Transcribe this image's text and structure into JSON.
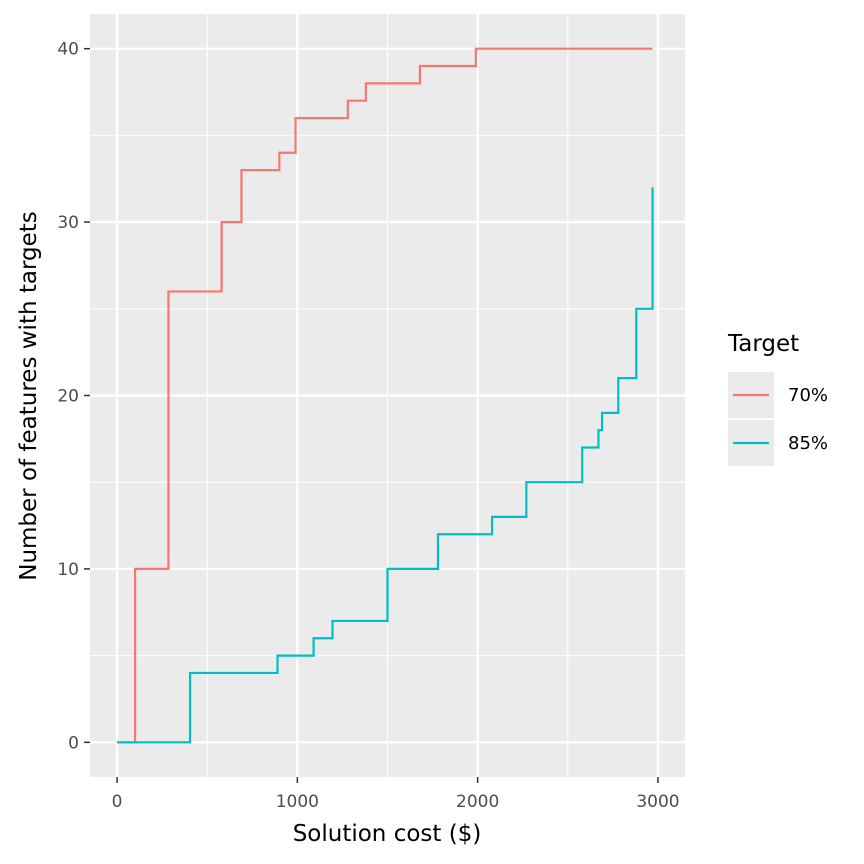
{
  "chart_data": {
    "type": "line",
    "step": true,
    "title": "",
    "xlabel": "Solution cost ($)",
    "ylabel": "Number of features with targets",
    "xlim": [
      -150,
      3150
    ],
    "ylim": [
      -2,
      42
    ],
    "x_ticks": [
      0,
      1000,
      2000,
      3000
    ],
    "y_ticks": [
      0,
      10,
      20,
      30,
      40
    ],
    "x_tick_labels": [
      "0",
      "1000",
      "2000",
      "3000"
    ],
    "y_tick_labels": [
      "0",
      "10",
      "20",
      "30",
      "40"
    ],
    "grid": true,
    "legend": {
      "title": "Target",
      "placement": "right"
    },
    "series": [
      {
        "name": "70%",
        "color": "#F8766D",
        "x": [
          0,
          100,
          285,
          580,
          690,
          900,
          990,
          1280,
          1380,
          1680,
          1990,
          2970
        ],
        "y": [
          0,
          10,
          26,
          30,
          33,
          34,
          36,
          37,
          38,
          39,
          40,
          40
        ]
      },
      {
        "name": "85%",
        "color": "#00BFC4",
        "x": [
          0,
          405,
          890,
          1090,
          1195,
          1500,
          1780,
          2080,
          2270,
          2580,
          2670,
          2690,
          2780,
          2880,
          2970,
          2970
        ],
        "y": [
          0,
          4,
          5,
          6,
          7,
          10,
          12,
          13,
          15,
          17,
          18,
          19,
          21,
          25,
          25,
          32
        ]
      }
    ]
  }
}
